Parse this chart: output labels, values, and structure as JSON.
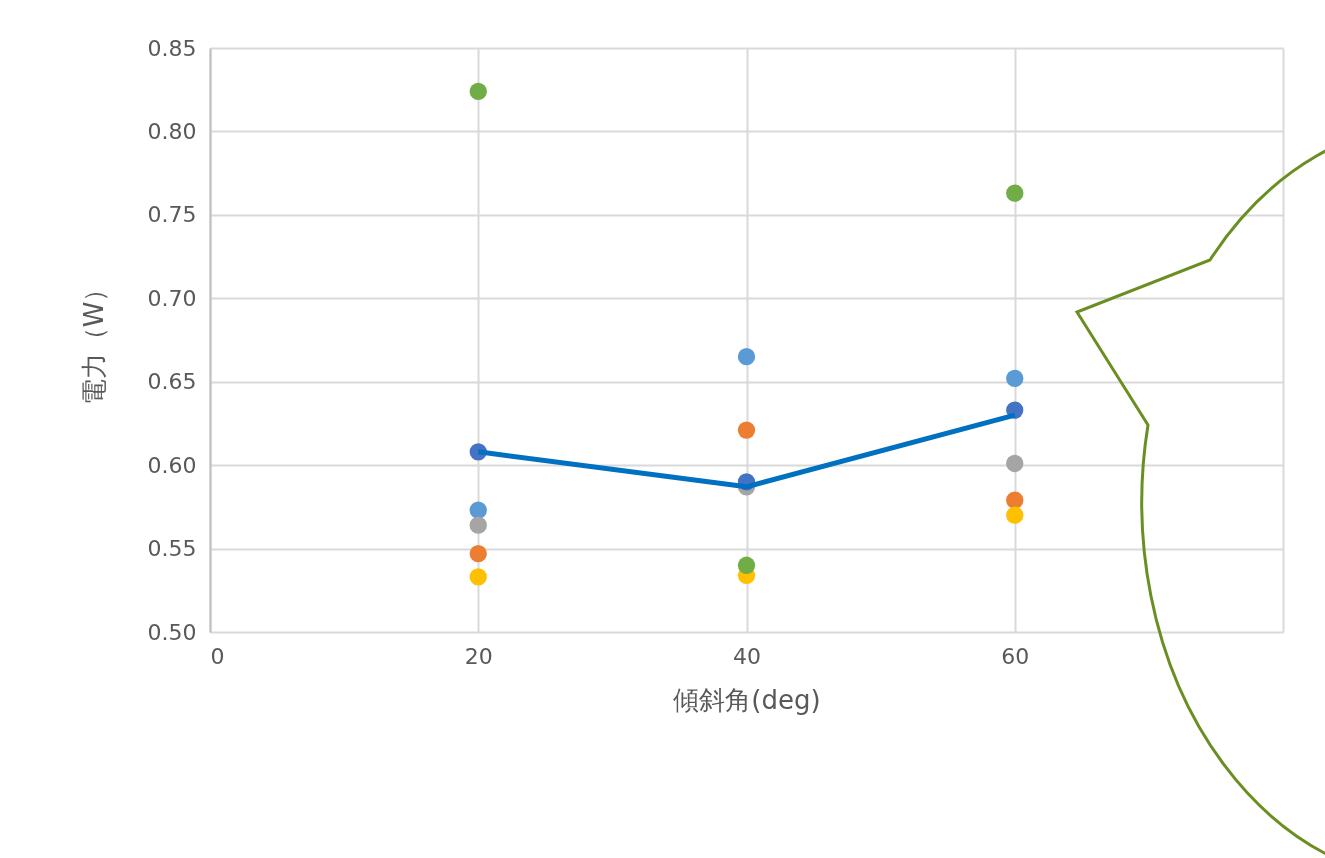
{
  "chart_data": {
    "type": "scatter",
    "xlabel": "傾斜角(deg)",
    "ylabel": "電力（W）",
    "xlim": [
      0,
      80
    ],
    "xticks": [
      0,
      20,
      40,
      60,
      {
        "value": 80,
        "label": null
      }
    ],
    "ylim": [
      0.5,
      0.85
    ],
    "yticks": [
      {
        "value": 0.5,
        "label": "0.50"
      },
      0.55,
      {
        "value": 0.6,
        "label": "0.60"
      },
      0.65,
      {
        "value": 0.7,
        "label": "0.70"
      },
      0.75,
      {
        "value": 0.8,
        "label": "0.80"
      },
      0.85
    ],
    "grid": true,
    "marker": "circle",
    "series": [
      {
        "color": "#5b9bd5",
        "x": [
          20,
          40,
          60
        ],
        "values": [
          0.573,
          0.665,
          0.652
        ]
      },
      {
        "color": "#ed7d31",
        "x": [
          20,
          40,
          60
        ],
        "values": [
          0.547,
          0.621,
          0.579
        ]
      },
      {
        "color": "#a5a5a5",
        "x": [
          20,
          40,
          60
        ],
        "values": [
          0.564,
          0.587,
          0.601
        ]
      },
      {
        "color": "#ffc000",
        "x": [
          20,
          40,
          60
        ],
        "values": [
          0.533,
          0.534,
          0.57
        ]
      },
      {
        "color": "#4472c4",
        "x": [
          20,
          40,
          60
        ],
        "values": [
          0.608,
          0.59,
          0.633
        ]
      },
      {
        "color": "#70ad47",
        "x": [
          20,
          40,
          60
        ],
        "values": [
          0.824,
          0.54,
          0.763
        ]
      },
      {
        "type": "line",
        "color": "#0070c0",
        "marker": "none",
        "x": [
          20,
          40,
          60
        ],
        "values": [
          0.608,
          0.587,
          0.63
        ]
      }
    ]
  }
}
